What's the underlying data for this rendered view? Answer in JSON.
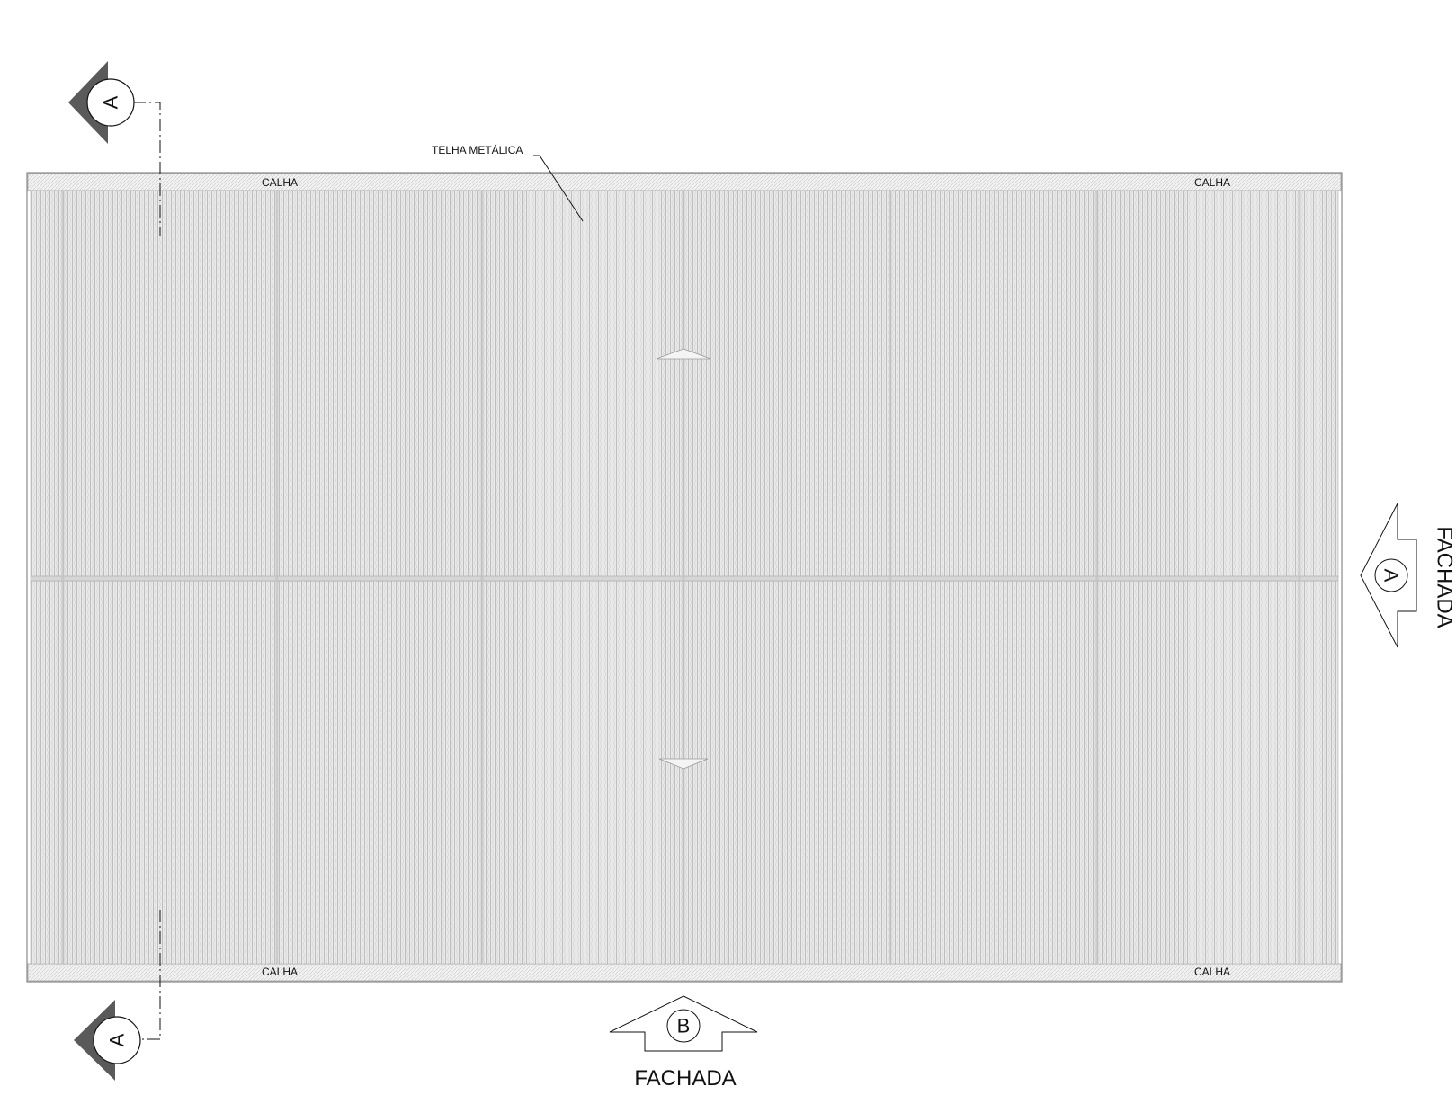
{
  "roof": {
    "material_label": "TELHA METÁLICA",
    "gutters": {
      "top_left": "CALHA",
      "top_right": "CALHA",
      "bottom_left": "CALHA",
      "bottom_right": "CALHA"
    }
  },
  "section_marks": {
    "top": "A",
    "bottom": "A"
  },
  "facade_markers": {
    "bottom": {
      "letter": "B",
      "label": "FACHADA"
    },
    "right": {
      "letter": "A",
      "label": "FACHADA"
    }
  },
  "colors": {
    "line": "#111111",
    "roof_fill": "#e6e6e6",
    "rib": "#b8b8b8",
    "dark_arrow": "#555555"
  }
}
